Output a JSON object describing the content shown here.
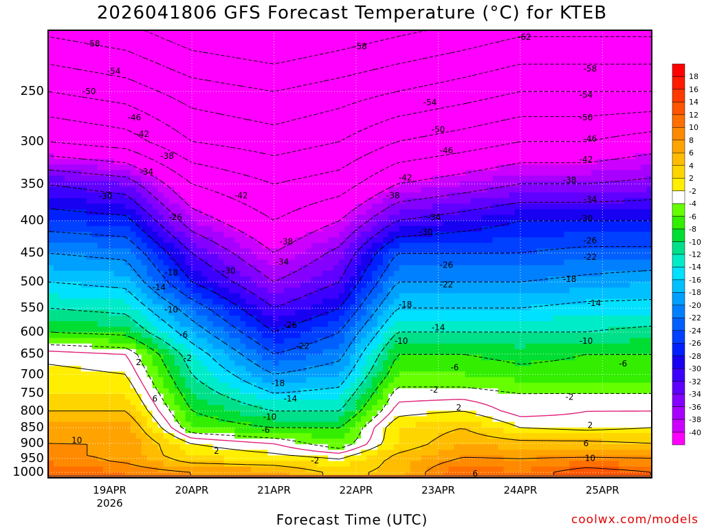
{
  "title": "2026041806 GFS Forecast Temperature (°C) for KTEB",
  "xlabel": "Forecast Time (UTC)",
  "credit": "coolwx.com/models",
  "colors": {
    "ground": "#a0522d",
    "freezing_line": "#e0207a",
    "plot_frame": "#000000"
  },
  "chart_data": {
    "type": "heatmap",
    "title": "2026041806 GFS Forecast Temperature (°C) for KTEB",
    "xlabel": "Forecast Time (UTC)",
    "ylabel": "",
    "x_ticks": [
      {
        "day": 1,
        "label": "19APR",
        "sub": "2026"
      },
      {
        "day": 2,
        "label": "20APR",
        "sub": ""
      },
      {
        "day": 3,
        "label": "21APR",
        "sub": ""
      },
      {
        "day": 4,
        "label": "22APR",
        "sub": ""
      },
      {
        "day": 5,
        "label": "23APR",
        "sub": ""
      },
      {
        "day": 6,
        "label": "24APR",
        "sub": ""
      },
      {
        "day": 7,
        "label": "25APR",
        "sub": ""
      }
    ],
    "y_ticks": [
      1000,
      950,
      900,
      850,
      800,
      750,
      700,
      650,
      600,
      550,
      500,
      450,
      400,
      350,
      300,
      250
    ],
    "y_scale": "log-pressure",
    "y_top": 200,
    "y_bottom": 1020,
    "x_start_day": 0.25,
    "x_end_day": 7.6,
    "grid": true,
    "colorbar": {
      "labels": [
        18,
        16,
        14,
        12,
        10,
        8,
        6,
        4,
        2,
        -2,
        -4,
        -6,
        -8,
        -10,
        -12,
        -14,
        -16,
        -18,
        -20,
        -22,
        -24,
        -26,
        -28,
        -30,
        -32,
        -34,
        -36,
        -38,
        -40
      ],
      "colors": [
        "#ff1a00",
        "#ff3a00",
        "#ff5500",
        "#ff7000",
        "#ff8a00",
        "#ffa300",
        "#ffbc00",
        "#ffd500",
        "#ffee00",
        "#ffffff",
        "#66ff00",
        "#33ee00",
        "#00dd33",
        "#00e08a",
        "#00ecc8",
        "#00e0ff",
        "#00c0ff",
        "#00a0ff",
        "#0080ff",
        "#0060ff",
        "#0040ff",
        "#0020ff",
        "#1800f0",
        "#3c00ff",
        "#6000ff",
        "#8400ff",
        "#a800ff",
        "#cc00ff",
        "#ff00ff"
      ]
    },
    "series": [
      {
        "level": 1000,
        "values": [
          14,
          12,
          10,
          9,
          5,
          7,
          14,
          12,
          16,
          14
        ]
      },
      {
        "level": 950,
        "values": [
          11,
          9,
          4,
          3,
          2,
          7,
          10,
          10,
          10,
          10
        ]
      },
      {
        "level": 900,
        "values": [
          10,
          10,
          2,
          0,
          -4,
          4,
          8,
          7,
          7,
          6
        ]
      },
      {
        "level": 850,
        "values": [
          9,
          9,
          -4,
          -6,
          -6,
          4,
          6,
          2,
          1,
          2
        ]
      },
      {
        "level": 800,
        "values": [
          6,
          6,
          -6,
          -10,
          -10,
          1,
          2,
          -1,
          0,
          0
        ]
      },
      {
        "level": 750,
        "values": [
          4,
          4,
          -8,
          -14,
          -13,
          -1,
          -1,
          -2,
          -2,
          -2
        ]
      },
      {
        "level": 700,
        "values": [
          3,
          2,
          -10,
          -18,
          -16,
          -4,
          -4,
          -5,
          -5,
          -5
        ]
      },
      {
        "level": 650,
        "values": [
          1,
          0,
          -12,
          -22,
          -19,
          -6,
          -6,
          -7,
          -6,
          -6
        ]
      },
      {
        "level": 600,
        "values": [
          -6,
          -7,
          -16,
          -26,
          -22,
          -10,
          -10,
          -10,
          -10,
          -9
        ]
      },
      {
        "level": 550,
        "values": [
          -10,
          -11,
          -20,
          -30,
          -26,
          -14,
          -14,
          -14,
          -13,
          -13
        ]
      },
      {
        "level": 500,
        "values": [
          -14,
          -15,
          -26,
          -34,
          -30,
          -18,
          -18,
          -18,
          -17,
          -16
        ]
      },
      {
        "level": 450,
        "values": [
          -18,
          -19,
          -30,
          -38,
          -33,
          -22,
          -22,
          -22,
          -21,
          -21
        ]
      },
      {
        "level": 400,
        "values": [
          -24,
          -25,
          -36,
          -42,
          -38,
          -30,
          -28,
          -26,
          -26,
          -26
        ]
      },
      {
        "level": 350,
        "values": [
          -30,
          -32,
          -42,
          -46,
          -44,
          -38,
          -36,
          -34,
          -34,
          -33
        ]
      },
      {
        "level": 300,
        "values": [
          -42,
          -44,
          -50,
          -52,
          -50,
          -46,
          -44,
          -42,
          -42,
          -40
        ]
      },
      {
        "level": 250,
        "values": [
          -50,
          -52,
          -56,
          -58,
          -56,
          -54,
          -52,
          -50,
          -50,
          -50
        ]
      }
    ],
    "series_x_days": [
      0.25,
      1.2,
      2.0,
      3.0,
      3.8,
      4.5,
      5.3,
      6.0,
      6.8,
      7.6
    ],
    "contour_labels": [
      {
        "text": "-58",
        "day": 0.8,
        "p": 210
      },
      {
        "text": "-54",
        "day": 1.05,
        "p": 232
      },
      {
        "text": "-50",
        "day": 0.75,
        "p": 250
      },
      {
        "text": "-46",
        "day": 1.3,
        "p": 275
      },
      {
        "text": "-42",
        "day": 1.4,
        "p": 292
      },
      {
        "text": "-38",
        "day": 1.7,
        "p": 316
      },
      {
        "text": "-34",
        "day": 1.45,
        "p": 335
      },
      {
        "text": "-30",
        "day": 0.95,
        "p": 366
      },
      {
        "text": "-26",
        "day": 1.8,
        "p": 395
      },
      {
        "text": "-18",
        "day": 1.75,
        "p": 483
      },
      {
        "text": "-14",
        "day": 1.6,
        "p": 510
      },
      {
        "text": "-10",
        "day": 1.75,
        "p": 553
      },
      {
        "text": "-6",
        "day": 1.9,
        "p": 606
      },
      {
        "text": "-2",
        "day": 1.95,
        "p": 660
      },
      {
        "text": "2",
        "day": 1.35,
        "p": 670
      },
      {
        "text": "6",
        "day": 1.55,
        "p": 765
      },
      {
        "text": "10",
        "day": 0.6,
        "p": 890
      },
      {
        "text": "-42",
        "day": 2.6,
        "p": 365
      },
      {
        "text": "-30",
        "day": 2.45,
        "p": 480
      },
      {
        "text": "-38",
        "day": 3.15,
        "p": 432
      },
      {
        "text": "-34",
        "day": 3.1,
        "p": 465
      },
      {
        "text": "-26",
        "day": 3.2,
        "p": 585
      },
      {
        "text": "-22",
        "day": 3.35,
        "p": 632
      },
      {
        "text": "-18",
        "day": 3.05,
        "p": 723
      },
      {
        "text": "-14",
        "day": 3.2,
        "p": 765
      },
      {
        "text": "-10",
        "day": 2.95,
        "p": 817
      },
      {
        "text": "-6",
        "day": 2.9,
        "p": 857
      },
      {
        "text": "2",
        "day": 2.3,
        "p": 925
      },
      {
        "text": "-2",
        "day": 3.5,
        "p": 958
      },
      {
        "text": "-58",
        "day": 4.05,
        "p": 212
      },
      {
        "text": "-54",
        "day": 4.9,
        "p": 260
      },
      {
        "text": "-50",
        "day": 5.0,
        "p": 287
      },
      {
        "text": "-46",
        "day": 5.1,
        "p": 310
      },
      {
        "text": "-42",
        "day": 4.6,
        "p": 342
      },
      {
        "text": "-38",
        "day": 4.45,
        "p": 365
      },
      {
        "text": "-34",
        "day": 4.95,
        "p": 395
      },
      {
        "text": "-30",
        "day": 4.85,
        "p": 417
      },
      {
        "text": "-26",
        "day": 5.1,
        "p": 470
      },
      {
        "text": "-22",
        "day": 5.1,
        "p": 505
      },
      {
        "text": "-18",
        "day": 4.6,
        "p": 543
      },
      {
        "text": "-14",
        "day": 5.0,
        "p": 590
      },
      {
        "text": "-10",
        "day": 4.55,
        "p": 620
      },
      {
        "text": "-6",
        "day": 5.2,
        "p": 683
      },
      {
        "text": "-2",
        "day": 4.95,
        "p": 740
      },
      {
        "text": "2",
        "day": 5.25,
        "p": 790
      },
      {
        "text": "6",
        "day": 5.45,
        "p": 1005
      },
      {
        "text": "-62",
        "day": 6.05,
        "p": 205
      },
      {
        "text": "-58",
        "day": 6.85,
        "p": 230
      },
      {
        "text": "-54",
        "day": 6.8,
        "p": 253
      },
      {
        "text": "-50",
        "day": 6.8,
        "p": 275
      },
      {
        "text": "-46",
        "day": 6.85,
        "p": 297
      },
      {
        "text": "-42",
        "day": 6.8,
        "p": 320
      },
      {
        "text": "-38",
        "day": 6.6,
        "p": 345
      },
      {
        "text": "-34",
        "day": 6.85,
        "p": 370
      },
      {
        "text": "-30",
        "day": 6.8,
        "p": 397
      },
      {
        "text": "-26",
        "day": 6.85,
        "p": 430
      },
      {
        "text": "-22",
        "day": 6.85,
        "p": 457
      },
      {
        "text": "-18",
        "day": 6.6,
        "p": 495
      },
      {
        "text": "-14",
        "day": 6.9,
        "p": 540
      },
      {
        "text": "-10",
        "day": 6.8,
        "p": 620
      },
      {
        "text": "-6",
        "day": 7.25,
        "p": 673
      },
      {
        "text": "-2",
        "day": 6.6,
        "p": 760
      },
      {
        "text": "2",
        "day": 6.85,
        "p": 842
      },
      {
        "text": "6",
        "day": 6.8,
        "p": 900
      },
      {
        "text": "10",
        "day": 6.85,
        "p": 950
      }
    ]
  }
}
